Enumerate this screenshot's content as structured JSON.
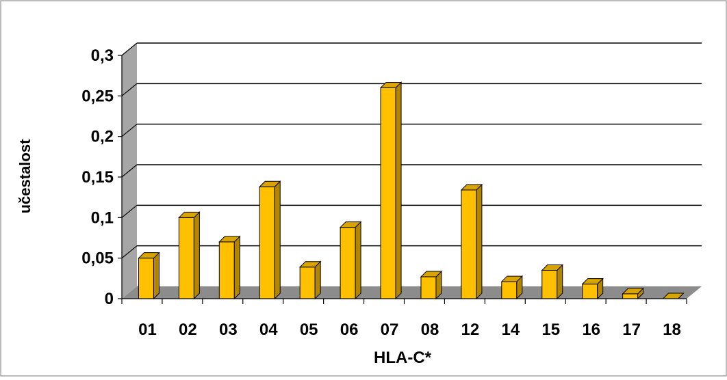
{
  "chart_data": {
    "type": "bar",
    "style": "3d-clustered-column",
    "xlabel": "HLA-C*",
    "ylabel": "učestalost",
    "ylim": [
      0,
      0.3
    ],
    "yticks": [
      "0",
      "0,05",
      "0,1",
      "0,15",
      "0,2",
      "0,25",
      "0,3"
    ],
    "grid": true,
    "legend": "none",
    "categories": [
      "01",
      "02",
      "03",
      "04",
      "05",
      "06",
      "07",
      "08",
      "12",
      "14",
      "15",
      "16",
      "17",
      "18"
    ],
    "values": [
      0.05,
      0.1,
      0.07,
      0.138,
      0.039,
      0.088,
      0.26,
      0.027,
      0.134,
      0.021,
      0.035,
      0.018,
      0.006,
      0.0
    ],
    "colors": {
      "bar_front": "#FFC000",
      "bar_side": "#B38600",
      "bar_top": "#D9A400",
      "floor": "#8C8C8C",
      "wall_left": "#A6A6A6",
      "border": "#A6A6A6"
    }
  }
}
